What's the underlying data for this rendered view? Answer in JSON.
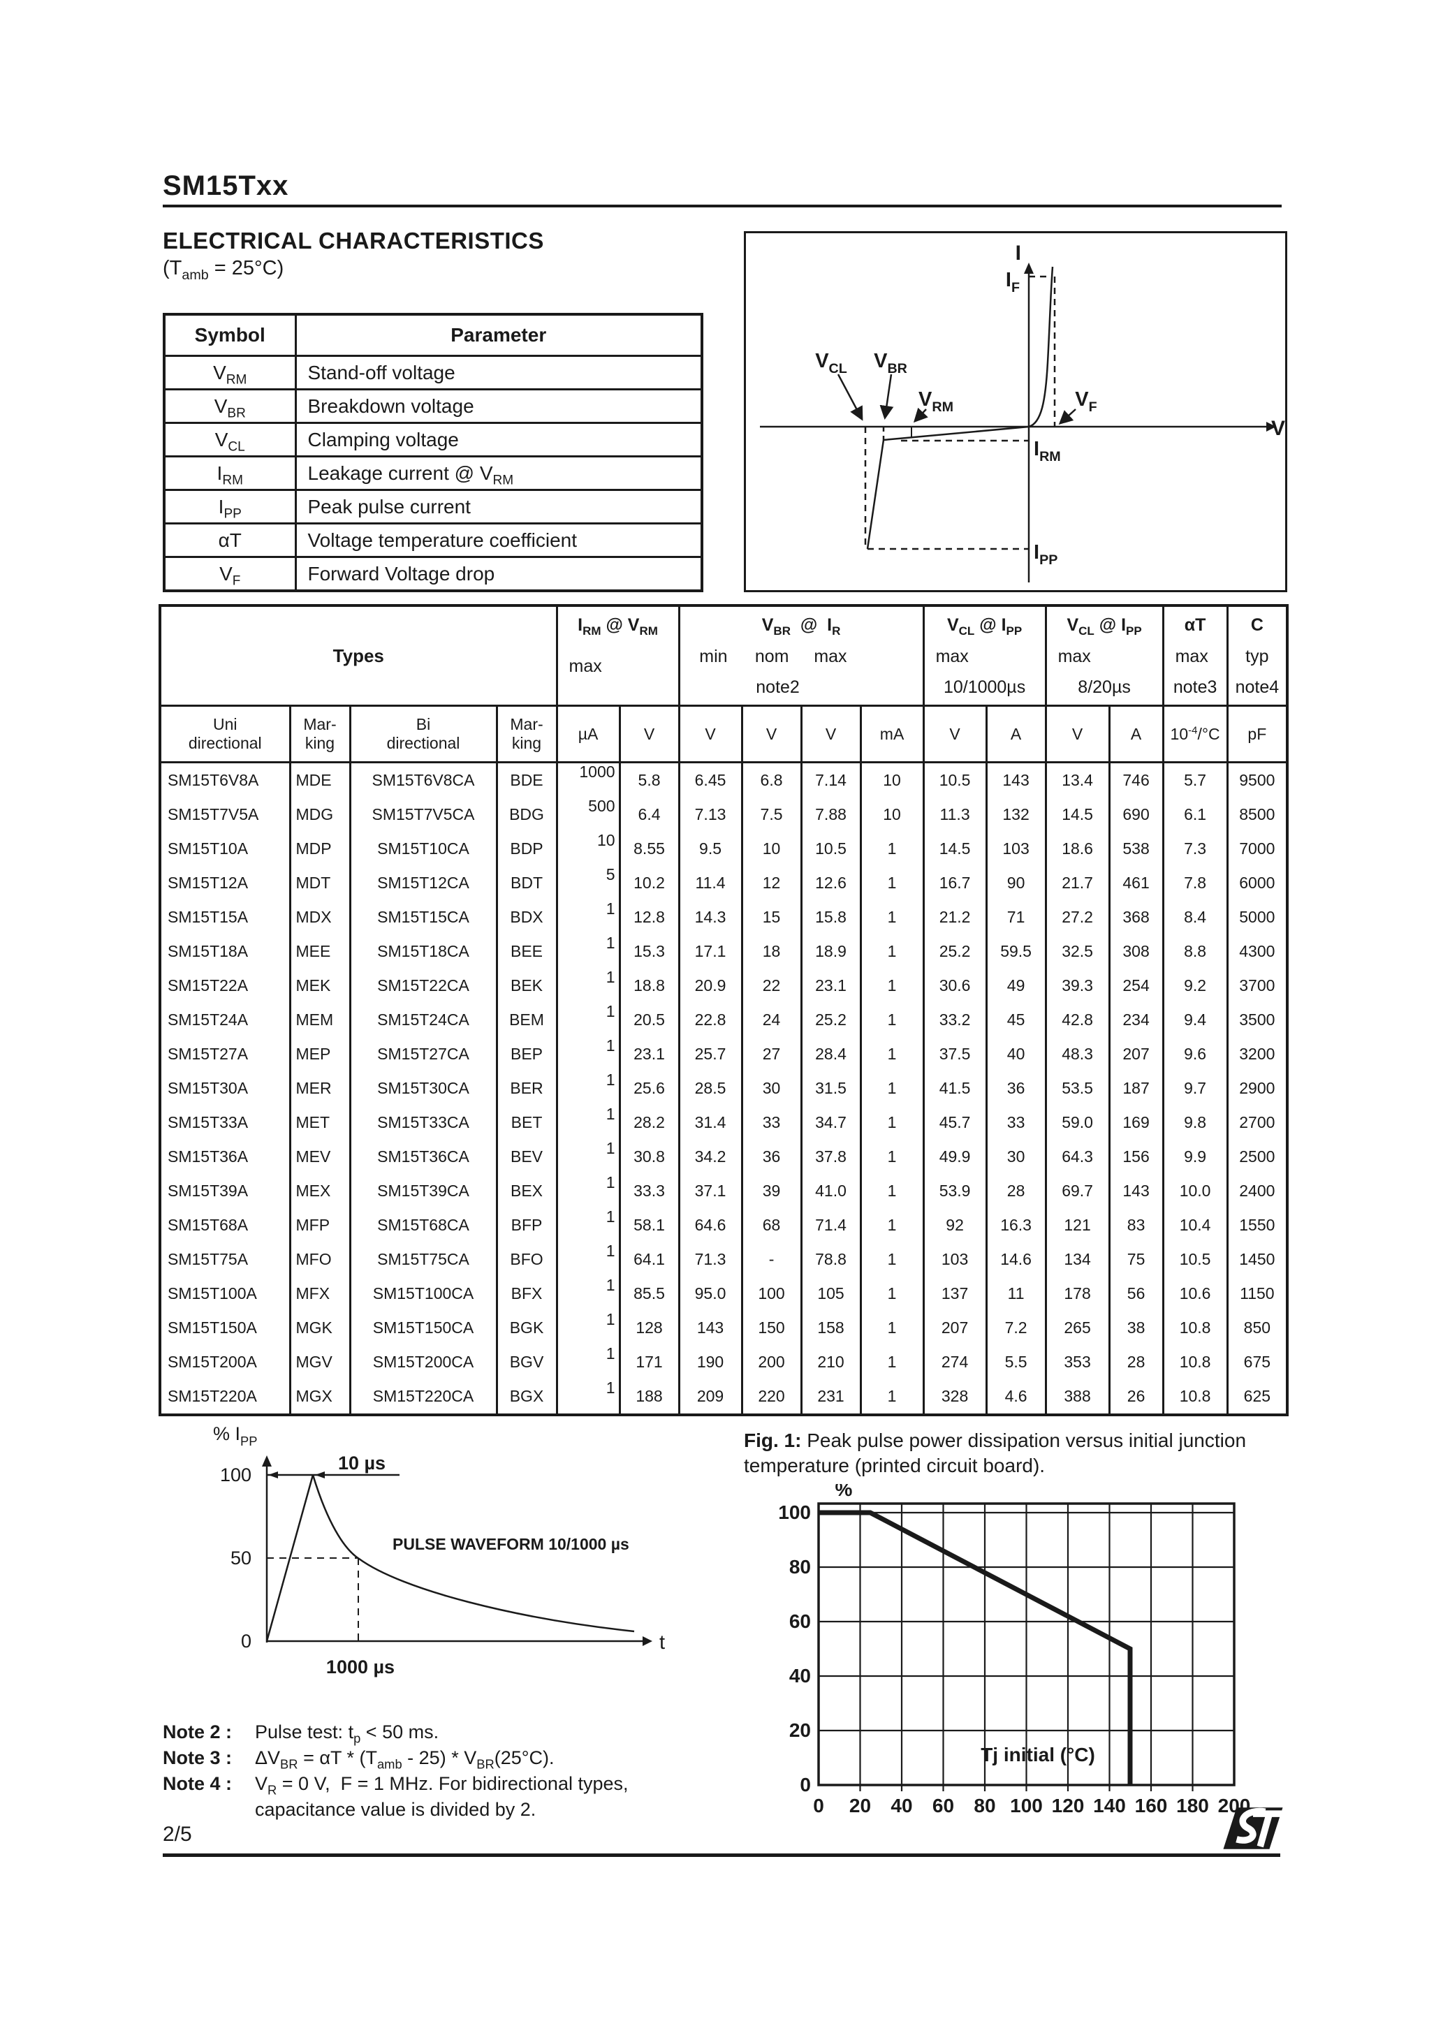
{
  "page": {
    "title": "SM15Txx",
    "page_number": "2/5"
  },
  "section": {
    "heading": "ELECTRICAL CHARACTERISTICS",
    "condition": [
      {
        "t": "(T"
      },
      {
        "s": "amb"
      },
      {
        "t": " = 25°C)"
      }
    ]
  },
  "symbol_table": {
    "headers": [
      "Symbol",
      "Parameter"
    ],
    "rows": [
      {
        "sym": [
          {
            "t": "V"
          },
          {
            "s": "RM"
          }
        ],
        "par": [
          {
            "t": "Stand-off voltage"
          }
        ]
      },
      {
        "sym": [
          {
            "t": "V"
          },
          {
            "s": "BR"
          }
        ],
        "par": [
          {
            "t": "Breakdown voltage"
          }
        ]
      },
      {
        "sym": [
          {
            "t": "V"
          },
          {
            "s": "CL"
          }
        ],
        "par": [
          {
            "t": "Clamping voltage"
          }
        ]
      },
      {
        "sym": [
          {
            "t": "I"
          },
          {
            "s": "RM"
          }
        ],
        "par": [
          {
            "t": "Leakage current @ V"
          },
          {
            "s": "RM"
          }
        ]
      },
      {
        "sym": [
          {
            "t": "I"
          },
          {
            "s": "PP"
          }
        ],
        "par": [
          {
            "t": "Peak pulse current"
          }
        ]
      },
      {
        "sym": [
          {
            "t": "αT"
          }
        ],
        "par": [
          {
            "t": "Voltage temperature coefficient"
          }
        ]
      },
      {
        "sym": [
          {
            "t": "V"
          },
          {
            "s": "F"
          }
        ],
        "par": [
          {
            "t": "Forward Voltage drop"
          }
        ]
      }
    ]
  },
  "iv_diagram": {
    "labels": {
      "i": [
        {
          "t": "I"
        }
      ],
      "v": [
        {
          "t": "V"
        }
      ],
      "i_f": [
        {
          "t": "I"
        },
        {
          "s": "F"
        }
      ],
      "v_f": [
        {
          "t": "V"
        },
        {
          "s": "F"
        }
      ],
      "i_rm": [
        {
          "t": "I"
        },
        {
          "s": "RM"
        }
      ],
      "i_pp": [
        {
          "t": "I"
        },
        {
          "s": "PP"
        }
      ],
      "v_cl": [
        {
          "t": "V"
        },
        {
          "s": "CL"
        }
      ],
      "v_br": [
        {
          "t": "V"
        },
        {
          "s": "BR"
        }
      ],
      "v_rm": [
        {
          "t": "V"
        },
        {
          "s": "RM"
        }
      ]
    }
  },
  "main_table": {
    "groups": {
      "types": "Types",
      "irm": {
        "l1": [
          {
            "t": "I"
          },
          {
            "s": "RM"
          },
          {
            "t": " @ V"
          },
          {
            "s": "RM"
          }
        ],
        "l2": "max"
      },
      "vbr": {
        "l1": [
          {
            "t": "V"
          },
          {
            "s": "BR"
          },
          {
            "t": "  @  I"
          },
          {
            "s": "R"
          }
        ],
        "min": "min",
        "nom": "nom",
        "max": "max",
        "note": "note2"
      },
      "vcl1": {
        "l1": [
          {
            "t": "V"
          },
          {
            "s": "CL"
          },
          {
            "t": " @ I"
          },
          {
            "s": "PP"
          }
        ],
        "l2": "max",
        "l3": "10/1000µs"
      },
      "vcl2": {
        "l1": [
          {
            "t": "V"
          },
          {
            "s": "CL"
          },
          {
            "t": " @ I"
          },
          {
            "s": "PP"
          }
        ],
        "l2": "max",
        "l3": "8/20µs"
      },
      "at": {
        "l1": [
          {
            "t": "αT"
          }
        ],
        "l2": "max",
        "l3": "note3"
      },
      "c": {
        "l1": [
          {
            "t": "C"
          }
        ],
        "l2": "typ",
        "l3": "note4"
      }
    },
    "subheader_row": [
      [
        {
          "t": "Uni\ndirectional"
        }
      ],
      [
        {
          "t": "Mar-\nking"
        }
      ],
      [
        {
          "t": "Bi\ndirectional"
        }
      ],
      [
        {
          "t": "Mar-\nking"
        }
      ],
      [
        {
          "t": "µA"
        }
      ],
      [
        {
          "t": "V"
        }
      ],
      [
        {
          "t": "V"
        }
      ],
      [
        {
          "t": "V"
        }
      ],
      [
        {
          "t": "V"
        }
      ],
      [
        {
          "t": "mA"
        }
      ],
      [
        {
          "t": "V"
        }
      ],
      [
        {
          "t": "A"
        }
      ],
      [
        {
          "t": "V"
        }
      ],
      [
        {
          "t": "A"
        }
      ],
      [
        {
          "t": "10"
        },
        {
          "u": "-4"
        },
        {
          "t": "/°C"
        }
      ],
      [
        {
          "t": "pF"
        }
      ]
    ],
    "rows": [
      [
        "SM15T6V8A",
        "MDE",
        "SM15T6V8CA",
        "BDE",
        "1000",
        "5.8",
        "6.45",
        "6.8",
        "7.14",
        "10",
        "10.5",
        "143",
        "13.4",
        "746",
        "5.7",
        "9500"
      ],
      [
        "SM15T7V5A",
        "MDG",
        "SM15T7V5CA",
        "BDG",
        "500",
        "6.4",
        "7.13",
        "7.5",
        "7.88",
        "10",
        "11.3",
        "132",
        "14.5",
        "690",
        "6.1",
        "8500"
      ],
      [
        "SM15T10A",
        "MDP",
        "SM15T10CA",
        "BDP",
        "10",
        "8.55",
        "9.5",
        "10",
        "10.5",
        "1",
        "14.5",
        "103",
        "18.6",
        "538",
        "7.3",
        "7000"
      ],
      [
        "SM15T12A",
        "MDT",
        "SM15T12CA",
        "BDT",
        "5",
        "10.2",
        "11.4",
        "12",
        "12.6",
        "1",
        "16.7",
        "90",
        "21.7",
        "461",
        "7.8",
        "6000"
      ],
      [
        "SM15T15A",
        "MDX",
        "SM15T15CA",
        "BDX",
        "1",
        "12.8",
        "14.3",
        "15",
        "15.8",
        "1",
        "21.2",
        "71",
        "27.2",
        "368",
        "8.4",
        "5000"
      ],
      [
        "SM15T18A",
        "MEE",
        "SM15T18CA",
        "BEE",
        "1",
        "15.3",
        "17.1",
        "18",
        "18.9",
        "1",
        "25.2",
        "59.5",
        "32.5",
        "308",
        "8.8",
        "4300"
      ],
      [
        "SM15T22A",
        "MEK",
        "SM15T22CA",
        "BEK",
        "1",
        "18.8",
        "20.9",
        "22",
        "23.1",
        "1",
        "30.6",
        "49",
        "39.3",
        "254",
        "9.2",
        "3700"
      ],
      [
        "SM15T24A",
        "MEM",
        "SM15T24CA",
        "BEM",
        "1",
        "20.5",
        "22.8",
        "24",
        "25.2",
        "1",
        "33.2",
        "45",
        "42.8",
        "234",
        "9.4",
        "3500"
      ],
      [
        "SM15T27A",
        "MEP",
        "SM15T27CA",
        "BEP",
        "1",
        "23.1",
        "25.7",
        "27",
        "28.4",
        "1",
        "37.5",
        "40",
        "48.3",
        "207",
        "9.6",
        "3200"
      ],
      [
        "SM15T30A",
        "MER",
        "SM15T30CA",
        "BER",
        "1",
        "25.6",
        "28.5",
        "30",
        "31.5",
        "1",
        "41.5",
        "36",
        "53.5",
        "187",
        "9.7",
        "2900"
      ],
      [
        "SM15T33A",
        "MET",
        "SM15T33CA",
        "BET",
        "1",
        "28.2",
        "31.4",
        "33",
        "34.7",
        "1",
        "45.7",
        "33",
        "59.0",
        "169",
        "9.8",
        "2700"
      ],
      [
        "SM15T36A",
        "MEV",
        "SM15T36CA",
        "BEV",
        "1",
        "30.8",
        "34.2",
        "36",
        "37.8",
        "1",
        "49.9",
        "30",
        "64.3",
        "156",
        "9.9",
        "2500"
      ],
      [
        "SM15T39A",
        "MEX",
        "SM15T39CA",
        "BEX",
        "1",
        "33.3",
        "37.1",
        "39",
        "41.0",
        "1",
        "53.9",
        "28",
        "69.7",
        "143",
        "10.0",
        "2400"
      ],
      [
        "SM15T68A",
        "MFP",
        "SM15T68CA",
        "BFP",
        "1",
        "58.1",
        "64.6",
        "68",
        "71.4",
        "1",
        "92",
        "16.3",
        "121",
        "83",
        "10.4",
        "1550"
      ],
      [
        "SM15T75A",
        "MFO",
        "SM15T75CA",
        "BFO",
        "1",
        "64.1",
        "71.3",
        "-",
        "78.8",
        "1",
        "103",
        "14.6",
        "134",
        "75",
        "10.5",
        "1450"
      ],
      [
        "SM15T100A",
        "MFX",
        "SM15T100CA",
        "BFX",
        "1",
        "85.5",
        "95.0",
        "100",
        "105",
        "1",
        "137",
        "11",
        "178",
        "56",
        "10.6",
        "1150"
      ],
      [
        "SM15T150A",
        "MGK",
        "SM15T150CA",
        "BGK",
        "1",
        "128",
        "143",
        "150",
        "158",
        "1",
        "207",
        "7.2",
        "265",
        "38",
        "10.8",
        "850"
      ],
      [
        "SM15T200A",
        "MGV",
        "SM15T200CA",
        "BGV",
        "1",
        "171",
        "190",
        "200",
        "210",
        "1",
        "274",
        "5.5",
        "353",
        "28",
        "10.8",
        "675"
      ],
      [
        "SM15T220A",
        "MGX",
        "SM15T220CA",
        "BGX",
        "1",
        "188",
        "209",
        "220",
        "231",
        "1",
        "328",
        "4.6",
        "388",
        "26",
        "10.8",
        "625"
      ]
    ]
  },
  "pulse_chart": {
    "y_label": [
      {
        "t": "% I"
      },
      {
        "s": "PP"
      }
    ],
    "tick_100": "100",
    "tick_50": "50",
    "tick_0": "0",
    "ten_us": "10 µs",
    "thousand_us": "1000 µs",
    "waveform_label": "PULSE WAVEFORM 10/1000 µs",
    "x_label": "t"
  },
  "fig1": {
    "caption_prefix": "Fig. 1:",
    "caption_rest": " Peak pulse power dissipation versus initial junction temperature (printed circuit board).",
    "y_unit": "%",
    "x_label": "Tj initial (°C)",
    "x_ticks": [
      "0",
      "20",
      "40",
      "60",
      "80",
      "100",
      "120",
      "140",
      "160",
      "180",
      "200"
    ],
    "y_ticks": [
      "100",
      "80",
      "60",
      "40",
      "20",
      "0"
    ]
  },
  "chart_data": [
    {
      "id": "pulse-waveform",
      "type": "line",
      "title": "PULSE WAVEFORM 10/1000 µs",
      "xlabel": "t",
      "ylabel": "% Ipp",
      "y_ticks": [
        0,
        50,
        100
      ],
      "annotations": [
        "10 µs",
        "1000 µs"
      ],
      "points_t_us_vs_pct": [
        [
          0,
          0
        ],
        [
          10,
          100
        ],
        [
          1000,
          50
        ]
      ],
      "description": "Surge pulse: linear rise to 100% at t=10µs, exponential decay to 50% at t=1000µs"
    },
    {
      "id": "fig1-derating",
      "type": "line",
      "title": "Fig. 1: Peak pulse power dissipation versus initial junction temperature (printed circuit board).",
      "xlabel": "Tj initial (°C)",
      "ylabel": "%",
      "xlim": [
        0,
        200
      ],
      "ylim": [
        0,
        100
      ],
      "x_tick_step": 20,
      "y_tick_step": 20,
      "grid": true,
      "points": [
        [
          0,
          100
        ],
        [
          25,
          100
        ],
        [
          150,
          50
        ],
        [
          150,
          0
        ]
      ]
    }
  ],
  "notes": {
    "items": [
      {
        "label": "Note 2 :",
        "text": [
          {
            "t": "Pulse test: t"
          },
          {
            "s": "p"
          },
          {
            "t": " < 50 ms."
          }
        ]
      },
      {
        "label": "Note 3 :",
        "text": [
          {
            "t": "ΔV"
          },
          {
            "s": "BR"
          },
          {
            "t": " = αT * (T"
          },
          {
            "s": "amb"
          },
          {
            "t": " - 25) * V"
          },
          {
            "s": "BR"
          },
          {
            "t": "(25°C)."
          }
        ]
      },
      {
        "label": "Note 4 :",
        "text": [
          {
            "t": "V"
          },
          {
            "s": "R"
          },
          {
            "t": " = 0 V,  F = 1 MHz. For bidirectional types,"
          }
        ]
      },
      {
        "label": "",
        "text": [
          {
            "t": "capacitance value is divided by 2."
          }
        ]
      }
    ]
  }
}
